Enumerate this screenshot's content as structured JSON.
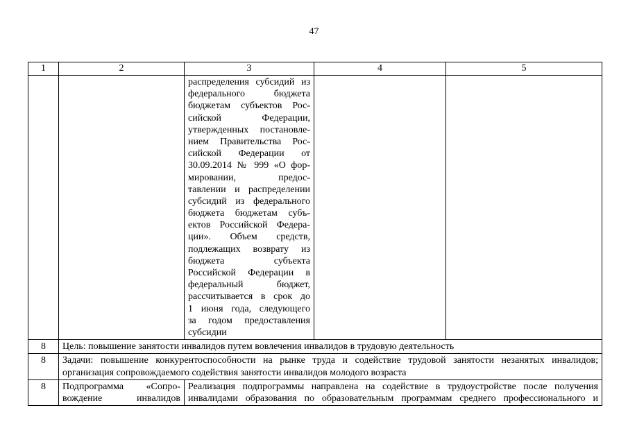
{
  "page": {
    "number": "47"
  },
  "table": {
    "header": [
      "1",
      "2",
      "3",
      "4",
      "5"
    ],
    "rows": {
      "continuation": {
        "col3": {
          "justify_last": false,
          "lines": [
            "распределения субсидий из",
            "федерального бюджета",
            "бюджетам субъектов Рос-",
            "сийской Федерации,",
            "утвержденных постановле-",
            "нием Правительства Рос-",
            "сийской Федерации от",
            "30.09.2014 № 999 «О фор-",
            "мировании, предос-",
            "тавлении и распределении",
            "субсидий из федерального",
            "бюджета бюджетам субъ-",
            "ектов Российской Федера-",
            "ции». Объем средств,",
            "подлежащих возврату из",
            "бюджета субъекта",
            "Российской Федерации в",
            "федеральный бюджет,",
            "рассчитывается в срок до",
            "1 июня года, следующего",
            "за годом предоставления",
            "субсидии"
          ]
        }
      },
      "goal": {
        "num": "8",
        "text": "Цель: повышение занятости инвалидов путем вовлечения инвалидов в трудовую деятельность"
      },
      "tasks": {
        "num": "8",
        "content": {
          "justify_last": false,
          "lines": [
            "Задачи: повышение конкурентоспособности на рынке труда и содействие трудовой занятости незанятых инвалидов;",
            "организация сопровождаемого содействия занятости инвалидов молодого возраста"
          ]
        }
      },
      "subprogram": {
        "num": "8",
        "col2": {
          "justify_last": true,
          "lines": [
            "Подпрограмма «Сопро-",
            "вождение инвалидов"
          ]
        },
        "col3": {
          "justify_last": true,
          "lines": [
            "Реализация подпрограммы направлена на содействие в трудоустройстве после получения",
            "инвалидами образования по образовательным программам среднего профессионального и"
          ]
        }
      }
    }
  }
}
